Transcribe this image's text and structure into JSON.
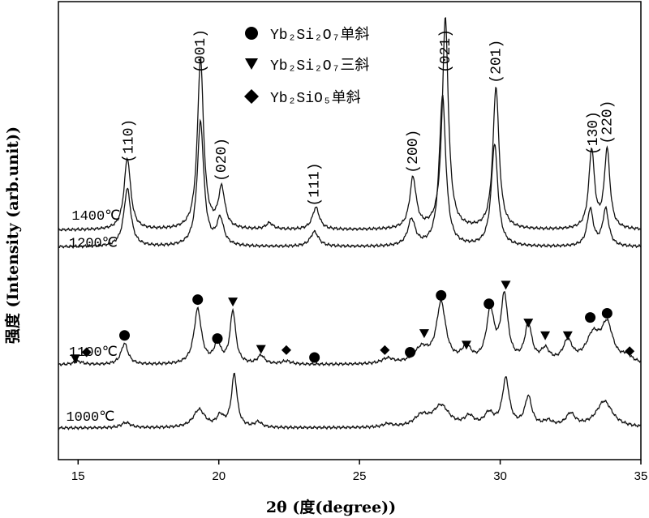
{
  "chart_data": {
    "type": "line",
    "xlabel": "2θ (度(degree))",
    "ylabel": "强度 (Intensity (arb.unit))",
    "xlim": [
      14.3,
      35
    ],
    "xticks": [
      15,
      20,
      25,
      30,
      35
    ],
    "grid": false,
    "legend": {
      "placement": "top-center",
      "entries": [
        {
          "marker": "circle",
          "label": "Yb₂Si₂O₇单斜"
        },
        {
          "marker": "triangle-down",
          "label": "Yb₂Si₂O₇三斜"
        },
        {
          "marker": "diamond",
          "label": "Yb₂SiO₅单斜"
        }
      ]
    },
    "peak_labels": [
      {
        "text": "(110)",
        "x": 16.8
      },
      {
        "text": "(001)",
        "x": 19.35
      },
      {
        "text": "(020)",
        "x": 20.1
      },
      {
        "text": "(111)",
        "x": 23.4
      },
      {
        "text": "(200)",
        "x": 26.9
      },
      {
        "text": "(021)",
        "x": 28.05
      },
      {
        "text": "(201)",
        "x": 29.85
      },
      {
        "text": "(130)",
        "x": 33.3
      },
      {
        "text": "(220)",
        "x": 33.8
      }
    ],
    "series": [
      {
        "name": "1400℃",
        "baseline": 2.18,
        "peaks": [
          {
            "x": 16.75,
            "h": 0.68,
            "w": 0.14
          },
          {
            "x": 19.35,
            "h": 1.62,
            "w": 0.13
          },
          {
            "x": 20.1,
            "h": 0.38,
            "w": 0.14
          },
          {
            "x": 21.8,
            "h": 0.06,
            "w": 0.15
          },
          {
            "x": 23.45,
            "h": 0.21,
            "w": 0.15
          },
          {
            "x": 26.9,
            "h": 0.48,
            "w": 0.14
          },
          {
            "x": 28.05,
            "h": 2.0,
            "w": 0.13
          },
          {
            "x": 29.85,
            "h": 1.35,
            "w": 0.13
          },
          {
            "x": 33.25,
            "h": 0.75,
            "w": 0.12
          },
          {
            "x": 33.8,
            "h": 0.75,
            "w": 0.12
          }
        ]
      },
      {
        "name": "1200℃",
        "baseline": 2.02,
        "peaks": [
          {
            "x": 16.75,
            "h": 0.55,
            "w": 0.15
          },
          {
            "x": 19.35,
            "h": 1.18,
            "w": 0.14
          },
          {
            "x": 20.05,
            "h": 0.25,
            "w": 0.15
          },
          {
            "x": 23.4,
            "h": 0.14,
            "w": 0.18
          },
          {
            "x": 26.85,
            "h": 0.25,
            "w": 0.16
          },
          {
            "x": 27.95,
            "h": 1.43,
            "w": 0.14
          },
          {
            "x": 29.8,
            "h": 0.97,
            "w": 0.14
          },
          {
            "x": 33.2,
            "h": 0.35,
            "w": 0.13
          },
          {
            "x": 33.75,
            "h": 0.35,
            "w": 0.13
          }
        ]
      },
      {
        "name": "1100℃",
        "baseline": 0.9,
        "peaks": [
          {
            "x": 15.0,
            "h": 0.03,
            "w": 0.2
          },
          {
            "x": 16.65,
            "h": 0.2,
            "w": 0.15
          },
          {
            "x": 19.25,
            "h": 0.52,
            "w": 0.16
          },
          {
            "x": 19.95,
            "h": 0.19,
            "w": 0.14
          },
          {
            "x": 20.5,
            "h": 0.5,
            "w": 0.12
          },
          {
            "x": 21.5,
            "h": 0.08,
            "w": 0.15
          },
          {
            "x": 22.4,
            "h": 0.03,
            "w": 0.2
          },
          {
            "x": 26.0,
            "h": 0.05,
            "w": 0.25
          },
          {
            "x": 27.2,
            "h": 0.14,
            "w": 0.3
          },
          {
            "x": 27.9,
            "h": 0.57,
            "w": 0.2
          },
          {
            "x": 28.8,
            "h": 0.14,
            "w": 0.2
          },
          {
            "x": 29.65,
            "h": 0.48,
            "w": 0.17
          },
          {
            "x": 30.15,
            "h": 0.62,
            "w": 0.15
          },
          {
            "x": 31.0,
            "h": 0.36,
            "w": 0.15
          },
          {
            "x": 31.6,
            "h": 0.12,
            "w": 0.18
          },
          {
            "x": 32.4,
            "h": 0.2,
            "w": 0.2
          },
          {
            "x": 33.3,
            "h": 0.25,
            "w": 0.3
          },
          {
            "x": 33.8,
            "h": 0.35,
            "w": 0.25
          },
          {
            "x": 34.5,
            "h": 0.06,
            "w": 0.2
          }
        ]
      },
      {
        "name": "1000℃",
        "baseline": 0.3,
        "peaks": [
          {
            "x": 16.7,
            "h": 0.05,
            "w": 0.2
          },
          {
            "x": 19.3,
            "h": 0.17,
            "w": 0.25
          },
          {
            "x": 20.05,
            "h": 0.1,
            "w": 0.15
          },
          {
            "x": 20.55,
            "h": 0.5,
            "w": 0.12
          },
          {
            "x": 21.4,
            "h": 0.05,
            "w": 0.15
          },
          {
            "x": 26.0,
            "h": 0.03,
            "w": 0.2
          },
          {
            "x": 27.2,
            "h": 0.1,
            "w": 0.3
          },
          {
            "x": 27.9,
            "h": 0.2,
            "w": 0.35
          },
          {
            "x": 28.9,
            "h": 0.09,
            "w": 0.2
          },
          {
            "x": 29.6,
            "h": 0.12,
            "w": 0.2
          },
          {
            "x": 30.2,
            "h": 0.45,
            "w": 0.15
          },
          {
            "x": 31.0,
            "h": 0.28,
            "w": 0.15
          },
          {
            "x": 31.7,
            "h": 0.05,
            "w": 0.2
          },
          {
            "x": 32.5,
            "h": 0.12,
            "w": 0.2
          },
          {
            "x": 33.7,
            "h": 0.25,
            "w": 0.35
          }
        ]
      }
    ],
    "phase_markers": [
      {
        "type": "triangle-down",
        "x": 14.9,
        "y": 0.96
      },
      {
        "type": "diamond",
        "x": 15.3,
        "y": 1.02
      },
      {
        "type": "circle",
        "x": 16.65,
        "y": 1.18
      },
      {
        "type": "circle",
        "x": 19.25,
        "y": 1.52
      },
      {
        "type": "circle",
        "x": 19.95,
        "y": 1.15
      },
      {
        "type": "triangle-down",
        "x": 20.5,
        "y": 1.5
      },
      {
        "type": "triangle-down",
        "x": 21.5,
        "y": 1.05
      },
      {
        "type": "diamond",
        "x": 22.4,
        "y": 1.04
      },
      {
        "type": "circle",
        "x": 23.4,
        "y": 0.97
      },
      {
        "type": "diamond",
        "x": 25.9,
        "y": 1.04
      },
      {
        "type": "circle",
        "x": 26.8,
        "y": 1.02
      },
      {
        "type": "triangle-down",
        "x": 27.3,
        "y": 1.2
      },
      {
        "type": "circle",
        "x": 27.9,
        "y": 1.56
      },
      {
        "type": "triangle-down",
        "x": 28.8,
        "y": 1.09
      },
      {
        "type": "circle",
        "x": 29.6,
        "y": 1.48
      },
      {
        "type": "triangle-down",
        "x": 30.2,
        "y": 1.66
      },
      {
        "type": "triangle-down",
        "x": 31.0,
        "y": 1.3
      },
      {
        "type": "triangle-down",
        "x": 31.6,
        "y": 1.18
      },
      {
        "type": "triangle-down",
        "x": 32.4,
        "y": 1.18
      },
      {
        "type": "circle",
        "x": 33.2,
        "y": 1.35
      },
      {
        "type": "circle",
        "x": 33.8,
        "y": 1.39
      },
      {
        "type": "diamond",
        "x": 34.6,
        "y": 1.03
      }
    ]
  }
}
